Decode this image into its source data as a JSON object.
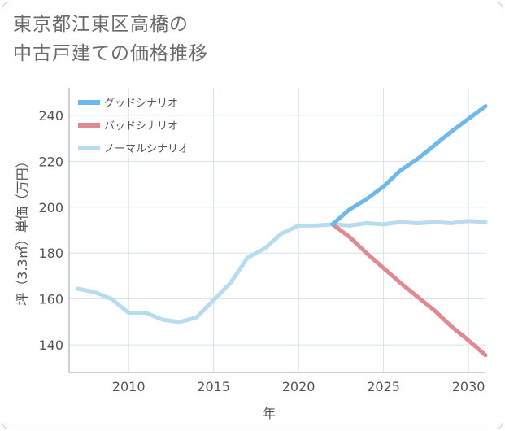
{
  "title_lines": [
    "東京都江東区高橋の",
    "中古戸建ての価格推移"
  ],
  "chart_data": {
    "type": "line",
    "xlabel": "年",
    "ylabel": "坪（3.3㎡）単価（万円）",
    "xlim": [
      2006.5,
      2031
    ],
    "ylim": [
      128,
      252
    ],
    "xticks": [
      2010,
      2015,
      2020,
      2025,
      2030
    ],
    "yticks": [
      140,
      160,
      180,
      200,
      220,
      240
    ],
    "grid": true,
    "legend_position": "top-left",
    "series": [
      {
        "name": "グッドシナリオ",
        "color": "#6fb8ea",
        "x": [
          2022,
          2023,
          2024,
          2025,
          2026,
          2027,
          2028,
          2029,
          2030,
          2031
        ],
        "y": [
          192.5,
          199,
          203.5,
          209,
          216,
          221,
          227,
          233,
          238.5,
          244
        ]
      },
      {
        "name": "バッドシナリオ",
        "color": "#df8a93",
        "x": [
          2022,
          2023,
          2024,
          2025,
          2026,
          2027,
          2028,
          2029,
          2030,
          2031
        ],
        "y": [
          192.5,
          187,
          180,
          173.5,
          167,
          161,
          155,
          148,
          142,
          135.5
        ]
      },
      {
        "name": "ノーマルシナリオ",
        "color": "#b8dbee",
        "x": [
          2007,
          2008,
          2009,
          2010,
          2011,
          2012,
          2013,
          2014,
          2015,
          2016,
          2017,
          2018,
          2019,
          2020,
          2021,
          2022,
          2023,
          2024,
          2025,
          2026,
          2027,
          2028,
          2029,
          2030,
          2031
        ],
        "y": [
          164.5,
          163,
          160,
          154,
          154,
          151,
          150,
          152,
          159.5,
          167,
          178,
          182,
          188.5,
          192,
          192,
          192.5,
          192,
          193,
          192.5,
          193.5,
          193,
          193.5,
          193,
          194,
          193.5
        ]
      }
    ]
  }
}
